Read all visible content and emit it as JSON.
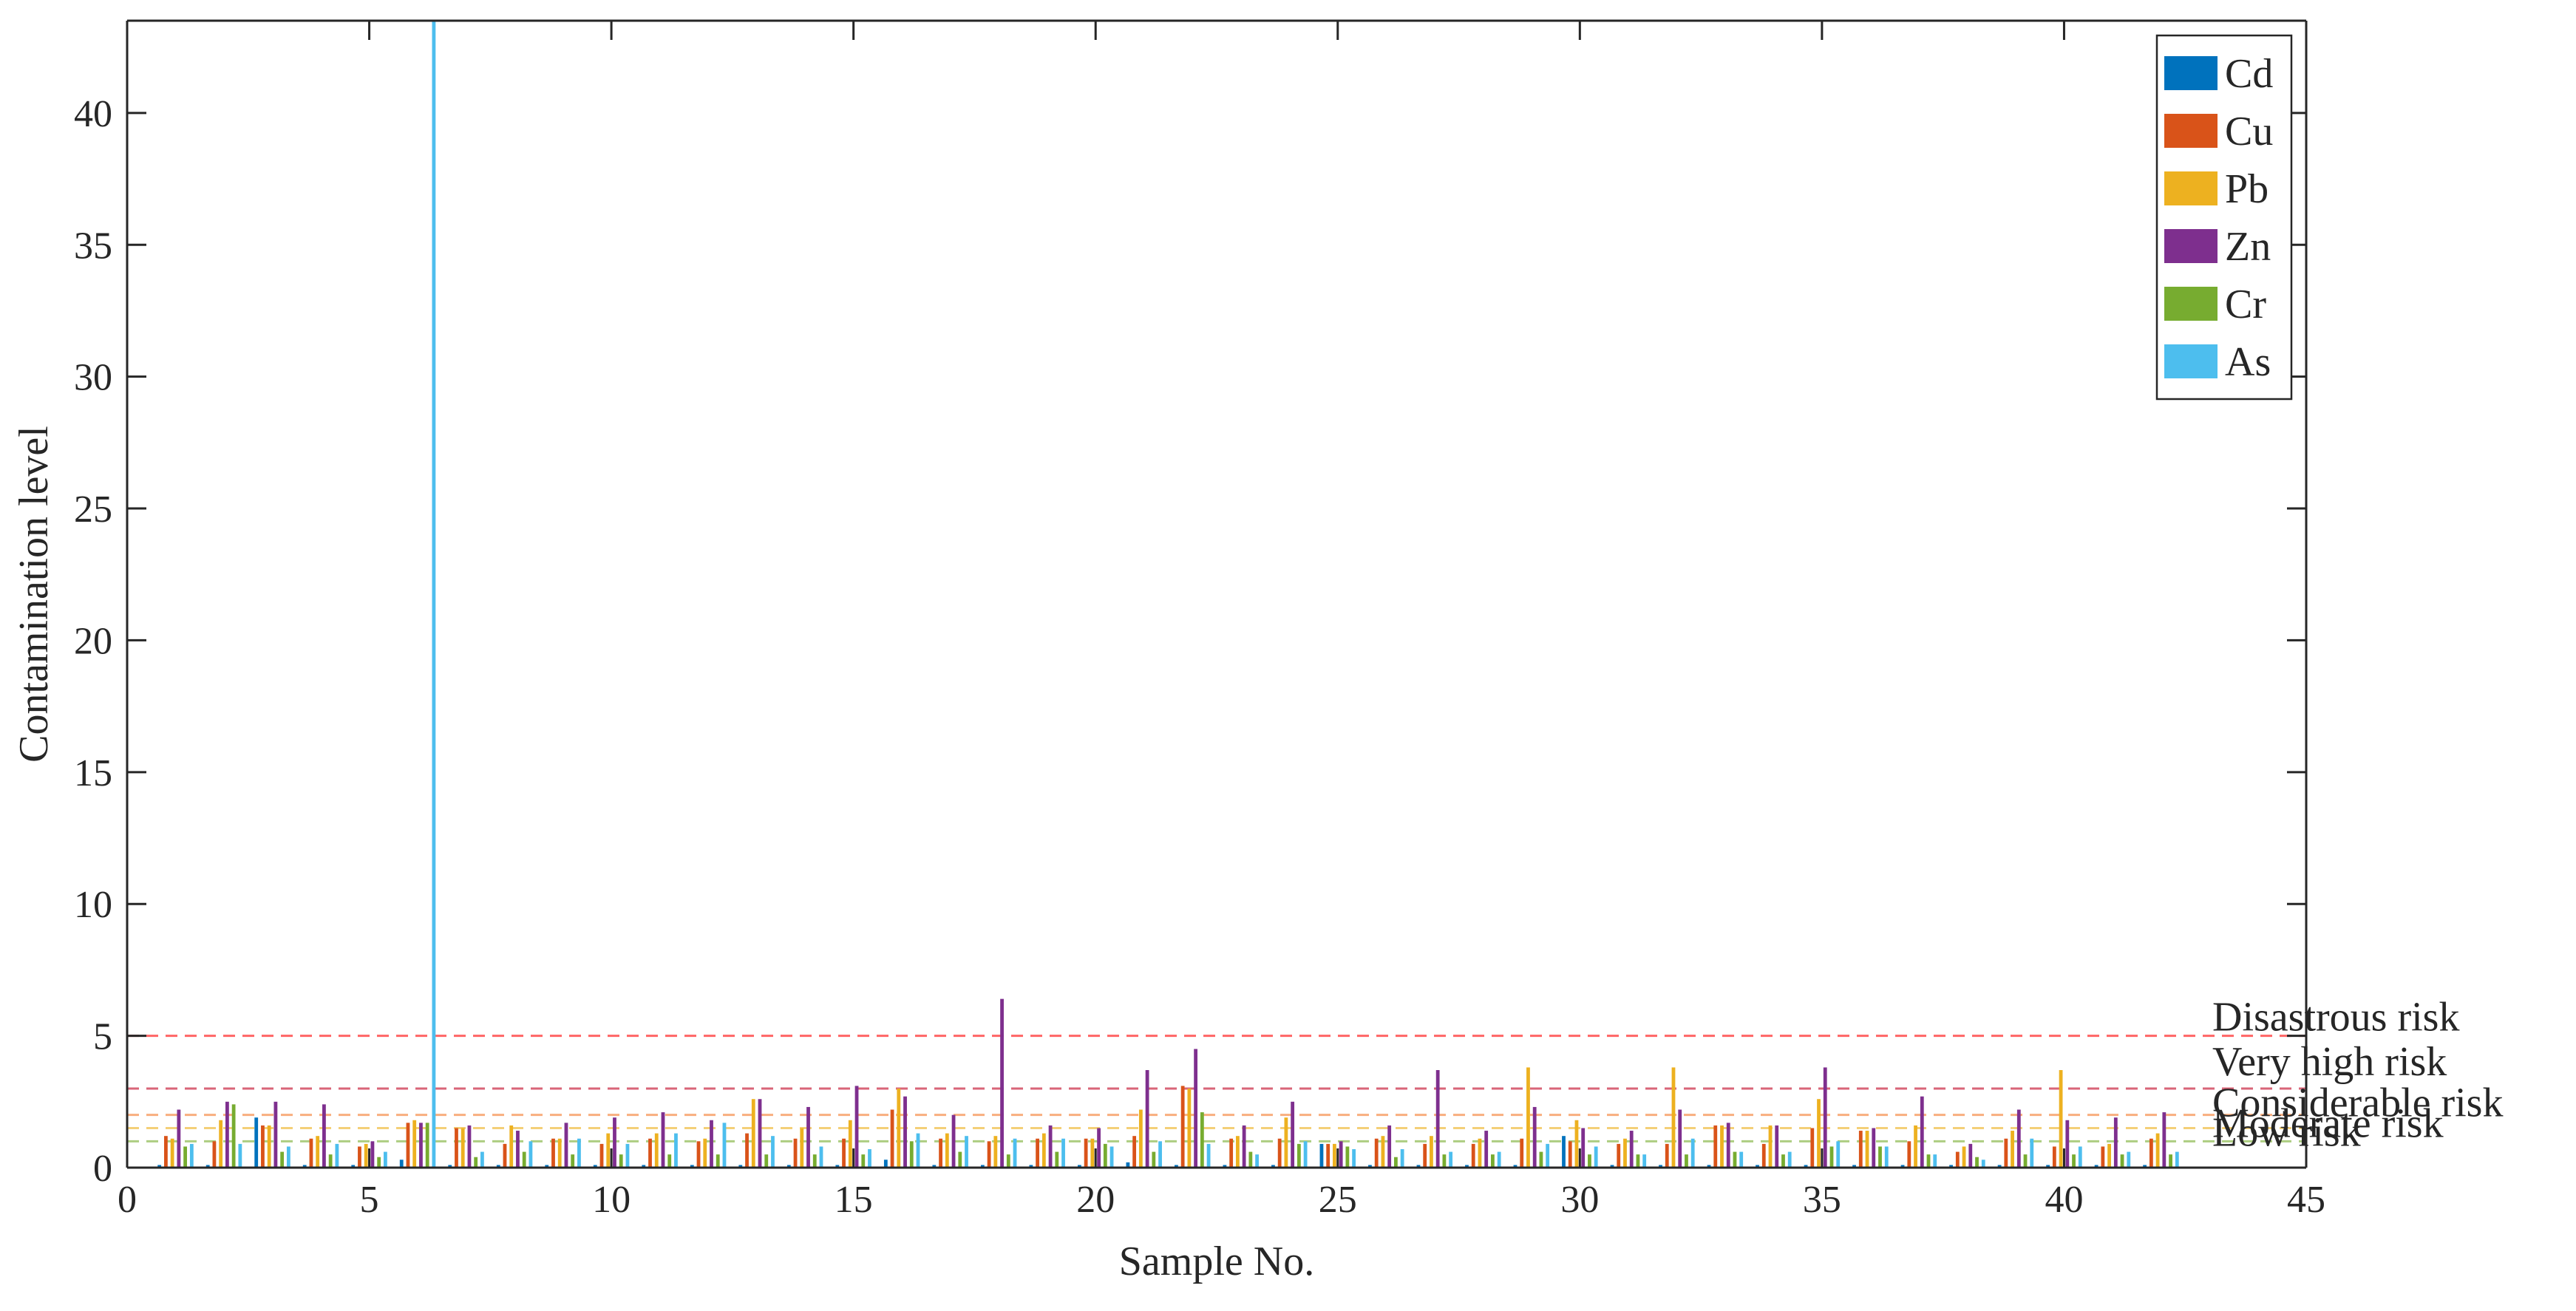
{
  "chart_data": {
    "type": "bar",
    "title": "",
    "xlabel": "Sample No.",
    "ylabel": "Contamination level",
    "xlim": [
      0,
      45
    ],
    "ylim": [
      0,
      43.5
    ],
    "xticks": [
      0,
      5,
      10,
      15,
      20,
      25,
      30,
      35,
      40,
      45
    ],
    "yticks": [
      0,
      5,
      10,
      15,
      20,
      25,
      30,
      35,
      40
    ],
    "grid": false,
    "legend_position": "top-right",
    "categories": [
      1,
      2,
      3,
      4,
      5,
      6,
      7,
      8,
      9,
      10,
      11,
      12,
      13,
      14,
      15,
      16,
      17,
      18,
      19,
      20,
      21,
      22,
      23,
      24,
      25,
      26,
      27,
      28,
      29,
      30,
      31,
      32,
      33,
      34,
      35,
      36,
      37,
      38,
      39,
      40,
      41,
      42
    ],
    "series": [
      {
        "name": "Cd",
        "color": "#0072BD",
        "values": [
          0.1,
          0.1,
          1.9,
          0.1,
          0.1,
          0.3,
          0.1,
          0.1,
          0.1,
          0.1,
          0.1,
          0.1,
          0.1,
          0.1,
          0.1,
          0.3,
          0.1,
          0.1,
          0.1,
          0.1,
          0.2,
          0.1,
          0.1,
          0.1,
          0.9,
          0.1,
          0.1,
          0.1,
          0.1,
          1.2,
          0.1,
          0.1,
          0.1,
          0.1,
          0.1,
          0.1,
          0.1,
          0.1,
          0.1,
          0.1,
          0.1,
          0.1
        ]
      },
      {
        "name": "Cu",
        "color": "#D95319",
        "values": [
          1.2,
          1.0,
          1.6,
          1.1,
          0.8,
          1.7,
          1.5,
          0.9,
          1.1,
          0.9,
          1.1,
          1.0,
          1.3,
          1.1,
          1.1,
          2.2,
          1.1,
          1.0,
          1.1,
          1.1,
          1.2,
          3.1,
          1.1,
          1.1,
          0.9,
          1.1,
          0.9,
          0.9,
          1.1,
          1.0,
          0.9,
          0.9,
          1.6,
          0.9,
          1.5,
          1.4,
          1.0,
          0.6,
          1.1,
          0.8,
          0.8,
          1.1
        ]
      },
      {
        "name": "Pb",
        "color": "#EDB120",
        "values": [
          1.1,
          1.8,
          1.6,
          1.2,
          0.9,
          1.8,
          1.5,
          1.6,
          1.1,
          1.3,
          1.3,
          1.1,
          2.6,
          1.5,
          1.8,
          3.0,
          1.3,
          1.2,
          1.3,
          1.1,
          2.2,
          3.0,
          1.2,
          1.9,
          0.9,
          1.2,
          1.2,
          1.1,
          3.8,
          1.8,
          1.1,
          3.8,
          1.6,
          1.6,
          2.6,
          1.4,
          1.6,
          0.8,
          1.4,
          3.7,
          0.9,
          1.3
        ]
      },
      {
        "name": "Zn",
        "color": "#7E2F8E",
        "values": [
          2.2,
          2.5,
          2.5,
          2.4,
          1.0,
          1.7,
          1.6,
          1.4,
          1.7,
          1.9,
          2.1,
          1.8,
          2.6,
          2.3,
          3.1,
          2.7,
          2.0,
          6.4,
          1.6,
          1.5,
          3.7,
          4.5,
          1.6,
          2.5,
          1.0,
          1.6,
          3.7,
          1.4,
          2.3,
          1.5,
          1.4,
          2.2,
          1.7,
          1.6,
          3.8,
          1.5,
          2.7,
          0.9,
          2.2,
          1.8,
          1.9,
          2.1
        ]
      },
      {
        "name": "Cr",
        "color": "#77AC30",
        "values": [
          0.8,
          2.4,
          0.6,
          0.5,
          0.4,
          1.7,
          0.4,
          0.6,
          0.5,
          0.5,
          0.5,
          0.5,
          0.5,
          0.5,
          0.5,
          1.0,
          0.6,
          0.5,
          0.6,
          0.9,
          0.6,
          2.1,
          0.6,
          0.9,
          0.8,
          0.4,
          0.5,
          0.5,
          0.6,
          0.5,
          0.5,
          0.5,
          0.6,
          0.5,
          0.8,
          0.8,
          0.5,
          0.4,
          0.5,
          0.5,
          0.5,
          0.5
        ]
      },
      {
        "name": "As",
        "color": "#4DBEEE",
        "values": [
          0.9,
          0.9,
          0.8,
          0.9,
          0.6,
          43.5,
          0.6,
          1.0,
          1.1,
          0.9,
          1.3,
          1.7,
          1.2,
          0.8,
          0.7,
          1.3,
          1.2,
          1.1,
          1.1,
          0.8,
          1.0,
          0.9,
          0.5,
          1.0,
          0.7,
          0.7,
          0.6,
          0.6,
          0.9,
          0.8,
          0.5,
          1.1,
          0.6,
          0.6,
          1.0,
          0.8,
          0.5,
          0.3,
          1.1,
          0.8,
          0.6,
          0.6
        ]
      }
    ],
    "reference_lines": [
      {
        "label": "Disastrous risk",
        "value": 5,
        "color": "#FF0000"
      },
      {
        "label": "Very high risk",
        "value": 3,
        "color": "#C00020"
      },
      {
        "label": "Considerable risk",
        "value": 2,
        "color": "#F47A2A"
      },
      {
        "label": "Moderate risk",
        "value": 1.5,
        "color": "#EDB120"
      },
      {
        "label": "Low risk",
        "value": 1,
        "color": "#77AC30"
      }
    ]
  }
}
